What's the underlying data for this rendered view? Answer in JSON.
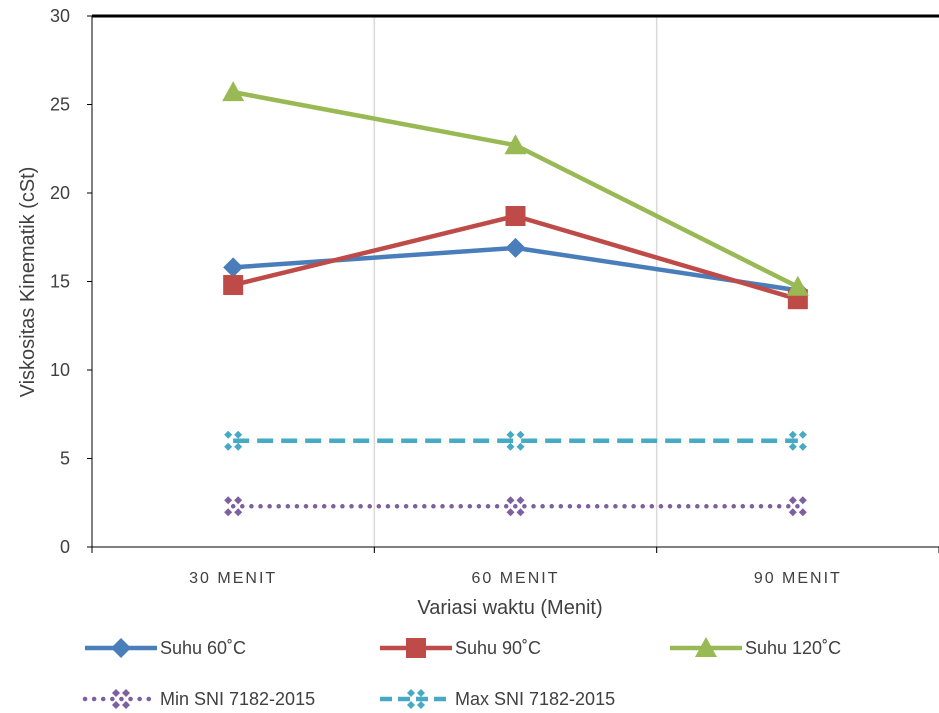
{
  "chart_data": {
    "type": "line",
    "title": "",
    "xlabel": "Variasi waktu (Menit)",
    "ylabel": "Viskositas Kinematik (cSt)",
    "categories": [
      "30 MENIT",
      "60 MENIT",
      "90 MENIT"
    ],
    "ylim": [
      0,
      30
    ],
    "yticks": [
      0,
      5,
      10,
      15,
      20,
      25,
      30
    ],
    "grid": "vertical",
    "legend_position": "bottom",
    "series": [
      {
        "name": "Suhu 60˚C",
        "values": [
          15.8,
          16.9,
          14.5
        ],
        "color": "#4a7ebb",
        "marker": "diamond",
        "style": "solid"
      },
      {
        "name": "Suhu 90˚C",
        "values": [
          14.8,
          18.7,
          14.0
        ],
        "color": "#be4b48",
        "marker": "square",
        "style": "solid"
      },
      {
        "name": "Suhu 120˚C",
        "values": [
          25.7,
          22.7,
          14.7
        ],
        "color": "#98b954",
        "marker": "triangle",
        "style": "solid"
      },
      {
        "name": "Min SNI 7182-2015",
        "values": [
          2.3,
          2.3,
          2.3
        ],
        "color": "#7d60a0",
        "marker": "star",
        "style": "dotted"
      },
      {
        "name": "Max SNI 7182-2015",
        "values": [
          6.0,
          6.0,
          6.0
        ],
        "color": "#46aac5",
        "marker": "star",
        "style": "dashed"
      }
    ]
  }
}
